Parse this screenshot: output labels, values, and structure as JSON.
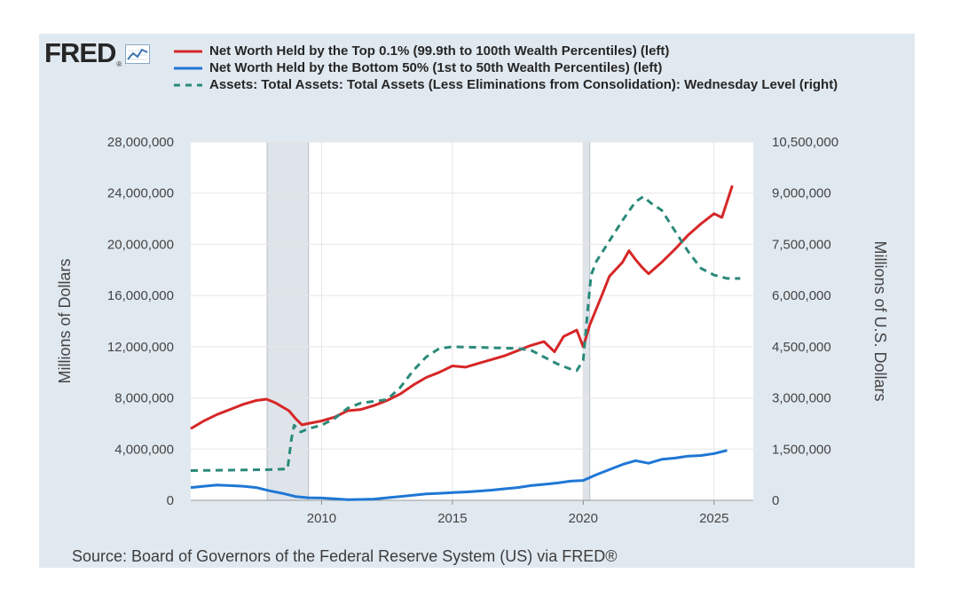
{
  "branding": {
    "logo_text": "FRED",
    "logo_reg_mark": "®",
    "logo_icon": "trend-line-icon"
  },
  "legend": [
    {
      "label": "Net Worth Held by the Top 0.1% (99.9th to 100th Wealth Percentiles) (left)",
      "color": "#d62728",
      "style": "solid"
    },
    {
      "label": "Net Worth Held by the Bottom 50% (1st to 50th Wealth Percentiles) (left)",
      "color": "#1f77d4",
      "style": "solid"
    },
    {
      "label": "Assets: Total Assets: Total Assets (Less Eliminations from Consolidation): Wednesday Level (right)",
      "color": "#2a8a7a",
      "style": "dashed"
    }
  ],
  "source": "Source: Board of Governors of the Federal Reserve System (US) via FRED®",
  "chart_data": {
    "type": "line",
    "xlim": [
      2005.0,
      2026.5
    ],
    "ylim_left": [
      0,
      28000000
    ],
    "ylim_right": [
      0,
      10500000
    ],
    "ylabel_left": "Millions of Dollars",
    "ylabel_right": "Millions of U.S. Dollars",
    "left_ticks": [
      "0",
      "4,000,000",
      "8,000,000",
      "12,000,000",
      "16,000,000",
      "20,000,000",
      "24,000,000",
      "28,000,000"
    ],
    "left_tick_values": [
      0,
      4000000,
      8000000,
      12000000,
      16000000,
      20000000,
      24000000,
      28000000
    ],
    "right_ticks": [
      "0",
      "1,500,000",
      "3,000,000",
      "4,500,000",
      "6,000,000",
      "7,500,000",
      "9,000,000",
      "10,500,000"
    ],
    "right_tick_values": [
      0,
      1500000,
      3000000,
      4500000,
      6000000,
      7500000,
      9000000,
      10500000
    ],
    "x_ticks": [
      "2010",
      "2015",
      "2020",
      "2025"
    ],
    "x_tick_values": [
      2010,
      2015,
      2020,
      2025
    ],
    "recessions": [
      [
        2007.92,
        2009.5
      ],
      [
        2020.0,
        2020.25
      ]
    ],
    "grid": true,
    "series": [
      {
        "name": "Net Worth Held by the Top 0.1% (99.9th to 100th Wealth Percentiles) (left)",
        "axis": "left",
        "color": "#d62728",
        "dash": false,
        "x": [
          2005.0,
          2005.5,
          2006.0,
          2006.5,
          2007.0,
          2007.5,
          2007.9,
          2008.25,
          2008.75,
          2009.0,
          2009.25,
          2009.5,
          2010.0,
          2010.5,
          2011.0,
          2011.5,
          2012.0,
          2012.5,
          2013.0,
          2013.5,
          2014.0,
          2014.5,
          2015.0,
          2015.5,
          2016.0,
          2016.5,
          2017.0,
          2017.5,
          2018.0,
          2018.5,
          2018.9,
          2019.25,
          2019.75,
          2020.0,
          2020.25,
          2020.75,
          2021.0,
          2021.5,
          2021.75,
          2022.0,
          2022.25,
          2022.5,
          2023.0,
          2023.5,
          2024.0,
          2024.5,
          2025.0,
          2025.3,
          2025.7
        ],
        "values": [
          5600000,
          6200000,
          6700000,
          7100000,
          7500000,
          7800000,
          7900000,
          7600000,
          7000000,
          6400000,
          5900000,
          6000000,
          6200000,
          6500000,
          7000000,
          7100000,
          7400000,
          7800000,
          8300000,
          9000000,
          9600000,
          10000000,
          10500000,
          10400000,
          10700000,
          11000000,
          11300000,
          11700000,
          12100000,
          12400000,
          11600000,
          12800000,
          13300000,
          12000000,
          13700000,
          16200000,
          17500000,
          18600000,
          19500000,
          18800000,
          18200000,
          17700000,
          18600000,
          19600000,
          20700000,
          21600000,
          22400000,
          22100000,
          24600000
        ]
      },
      {
        "name": "Net Worth Held by the Bottom 50% (1st to 50th Wealth Percentiles) (left)",
        "axis": "left",
        "color": "#1f77d4",
        "dash": false,
        "x": [
          2005.0,
          2005.5,
          2006.0,
          2006.5,
          2007.0,
          2007.5,
          2008.0,
          2008.5,
          2009.0,
          2009.5,
          2010.0,
          2010.5,
          2011.0,
          2011.5,
          2012.0,
          2012.5,
          2013.0,
          2013.5,
          2014.0,
          2014.5,
          2015.0,
          2015.5,
          2016.0,
          2016.5,
          2017.0,
          2017.5,
          2018.0,
          2018.5,
          2019.0,
          2019.5,
          2020.0,
          2020.5,
          2021.0,
          2021.5,
          2022.0,
          2022.5,
          2023.0,
          2023.5,
          2024.0,
          2024.5,
          2025.0,
          2025.5
        ],
        "values": [
          1000000,
          1100000,
          1200000,
          1150000,
          1100000,
          1000000,
          750000,
          550000,
          300000,
          200000,
          180000,
          120000,
          50000,
          70000,
          100000,
          200000,
          300000,
          400000,
          500000,
          550000,
          600000,
          650000,
          720000,
          800000,
          900000,
          1000000,
          1150000,
          1250000,
          1350000,
          1500000,
          1550000,
          2000000,
          2400000,
          2800000,
          3100000,
          2900000,
          3200000,
          3300000,
          3450000,
          3500000,
          3650000,
          3900000
        ]
      },
      {
        "name": "Assets: Total Assets: Total Assets (Less Eliminations from Consolidation): Wednesday Level (right)",
        "axis": "right",
        "color": "#2a8a7a",
        "dash": true,
        "x": [
          2005.0,
          2006.0,
          2007.0,
          2008.0,
          2008.7,
          2008.85,
          2008.95,
          2009.2,
          2009.5,
          2010.0,
          2010.5,
          2011.0,
          2011.5,
          2012.0,
          2012.5,
          2013.0,
          2013.5,
          2014.0,
          2014.5,
          2015.0,
          2016.0,
          2017.0,
          2017.5,
          2018.0,
          2018.5,
          2019.0,
          2019.5,
          2019.75,
          2020.0,
          2020.2,
          2020.3,
          2020.5,
          2021.0,
          2021.5,
          2022.0,
          2022.3,
          2022.6,
          2023.0,
          2023.5,
          2024.0,
          2024.5,
          2025.0,
          2025.5,
          2026.0
        ],
        "values": [
          870000,
          880000,
          890000,
          900000,
          920000,
          1800000,
          2200000,
          2000000,
          2100000,
          2200000,
          2400000,
          2700000,
          2850000,
          2900000,
          2950000,
          3300000,
          3800000,
          4200000,
          4450000,
          4500000,
          4480000,
          4460000,
          4450000,
          4400000,
          4200000,
          4000000,
          3850000,
          3800000,
          4100000,
          5800000,
          6600000,
          7000000,
          7600000,
          8200000,
          8750000,
          8900000,
          8700000,
          8500000,
          7900000,
          7300000,
          6800000,
          6600000,
          6500000,
          6500000
        ]
      }
    ]
  }
}
